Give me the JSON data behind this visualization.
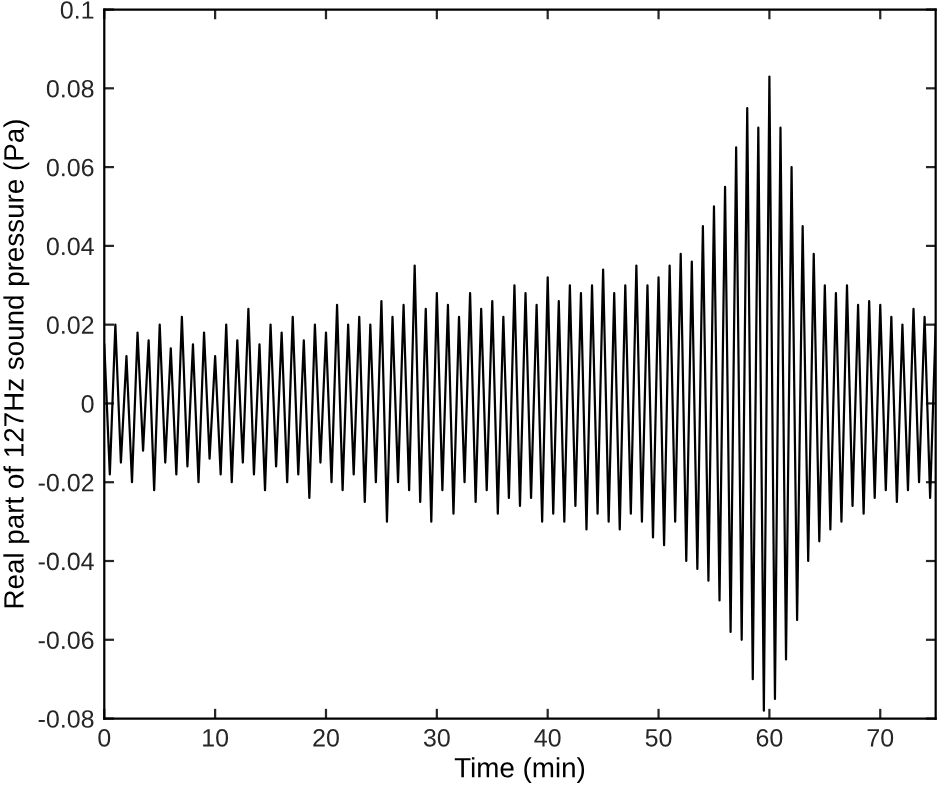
{
  "chart_data": {
    "type": "line",
    "xlabel": "Time (min)",
    "ylabel": "Real part of 127Hz sound pressure (Pa)",
    "xlim": [
      0,
      75
    ],
    "xticks": [
      0,
      10,
      20,
      30,
      40,
      50,
      60,
      70
    ],
    "ylim": [
      -0.08,
      0.1
    ],
    "yticks": [
      -0.08,
      -0.06,
      -0.04,
      -0.02,
      0,
      0.02,
      0.04,
      0.06,
      0.08,
      0.1
    ],
    "grid": false,
    "legend": false,
    "marker": "none",
    "line_style": "solid",
    "series": [
      {
        "color": "#000000",
        "x": [
          0,
          0.5,
          1,
          1.5,
          2,
          2.5,
          3,
          3.5,
          4,
          4.5,
          5,
          5.5,
          6,
          6.5,
          7,
          7.5,
          8,
          8.5,
          9,
          9.5,
          10,
          10.5,
          11,
          11.5,
          12,
          12.5,
          13,
          13.5,
          14,
          14.5,
          15,
          15.5,
          16,
          16.5,
          17,
          17.5,
          18,
          18.5,
          19,
          19.5,
          20,
          20.5,
          21,
          21.5,
          22,
          22.5,
          23,
          23.5,
          24,
          24.5,
          25,
          25.5,
          26,
          26.5,
          27,
          27.5,
          28,
          28.5,
          29,
          29.5,
          30,
          30.5,
          31,
          31.5,
          32,
          32.5,
          33,
          33.5,
          34,
          34.5,
          35,
          35.5,
          36,
          36.5,
          37,
          37.5,
          38,
          38.5,
          39,
          39.5,
          40,
          40.5,
          41,
          41.5,
          42,
          42.5,
          43,
          43.5,
          44,
          44.5,
          45,
          45.5,
          46,
          46.5,
          47,
          47.5,
          48,
          48.5,
          49,
          49.5,
          50,
          50.5,
          51,
          51.5,
          52,
          52.5,
          53,
          53.5,
          54,
          54.5,
          55,
          55.5,
          56,
          56.5,
          57,
          57.5,
          58,
          58.5,
          59,
          59.5,
          60,
          60.5,
          61,
          61.5,
          62,
          62.5,
          63,
          63.5,
          64,
          64.5,
          65,
          65.5,
          66,
          66.5,
          67,
          67.5,
          68,
          68.5,
          69,
          69.5,
          70,
          70.5,
          71,
          71.5,
          72,
          72.5,
          73,
          73.5,
          74,
          74.5,
          75
        ],
        "values": [
          0.015,
          -0.018,
          0.02,
          -0.015,
          0.012,
          -0.02,
          0.018,
          -0.012,
          0.016,
          -0.022,
          0.02,
          -0.015,
          0.014,
          -0.018,
          0.022,
          -0.016,
          0.015,
          -0.02,
          0.018,
          -0.014,
          0.012,
          -0.018,
          0.02,
          -0.02,
          0.016,
          -0.015,
          0.024,
          -0.018,
          0.015,
          -0.022,
          0.02,
          -0.016,
          0.018,
          -0.02,
          0.022,
          -0.018,
          0.016,
          -0.024,
          0.02,
          -0.015,
          0.018,
          -0.02,
          0.025,
          -0.022,
          0.02,
          -0.018,
          0.022,
          -0.025,
          0.02,
          -0.02,
          0.026,
          -0.03,
          0.022,
          -0.02,
          0.025,
          -0.022,
          0.035,
          -0.025,
          0.024,
          -0.03,
          0.028,
          -0.022,
          0.025,
          -0.028,
          0.022,
          -0.02,
          0.028,
          -0.025,
          0.024,
          -0.022,
          0.026,
          -0.028,
          0.022,
          -0.024,
          0.03,
          -0.026,
          0.028,
          -0.024,
          0.025,
          -0.03,
          0.032,
          -0.028,
          0.026,
          -0.03,
          0.03,
          -0.026,
          0.028,
          -0.032,
          0.03,
          -0.028,
          0.034,
          -0.03,
          0.028,
          -0.032,
          0.03,
          -0.028,
          0.035,
          -0.03,
          0.03,
          -0.034,
          0.032,
          -0.036,
          0.035,
          -0.03,
          0.038,
          -0.04,
          0.036,
          -0.042,
          0.045,
          -0.045,
          0.05,
          -0.05,
          0.055,
          -0.058,
          0.065,
          -0.06,
          0.075,
          -0.07,
          0.07,
          -0.078,
          0.083,
          -0.075,
          0.07,
          -0.065,
          0.06,
          -0.055,
          0.045,
          -0.04,
          0.038,
          -0.035,
          0.03,
          -0.032,
          0.028,
          -0.03,
          0.03,
          -0.026,
          0.025,
          -0.028,
          0.026,
          -0.024,
          0.025,
          -0.022,
          0.022,
          -0.025,
          0.02,
          -0.022,
          0.024,
          -0.02,
          0.022,
          -0.024,
          0.02
        ]
      }
    ]
  }
}
